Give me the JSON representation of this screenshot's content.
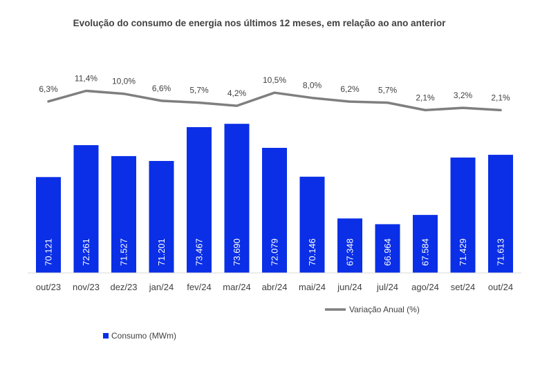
{
  "chart_data": {
    "type": "bar",
    "title": "Evolução do consumo de energia nos últimos 12 meses, em relação ao ano anterior",
    "categories": [
      "out/23",
      "nov/23",
      "dez/23",
      "jan/24",
      "fev/24",
      "mar/24",
      "abr/24",
      "mai/24",
      "jun/24",
      "jul/24",
      "ago/24",
      "set/24",
      "out/24"
    ],
    "series": [
      {
        "name": "Consumo (MWm)",
        "type": "bar",
        "color": "#0A2FE6",
        "values": [
          70121,
          72261,
          71527,
          71201,
          73467,
          73690,
          72079,
          70146,
          67348,
          66964,
          67584,
          71429,
          71613
        ],
        "labels": [
          "70.121",
          "72.261",
          "71.527",
          "71.201",
          "73.467",
          "73.690",
          "72.079",
          "70.146",
          "67.348",
          "66.964",
          "67.584",
          "71.429",
          "71.613"
        ]
      },
      {
        "name": "Variação Anual (%)",
        "type": "line",
        "color": "#7F7F7F",
        "values": [
          6.3,
          11.4,
          10.0,
          6.6,
          5.7,
          4.2,
          10.5,
          8.0,
          6.2,
          5.7,
          2.1,
          3.2,
          2.1
        ],
        "labels": [
          "6,3%",
          "11,4%",
          "10,0%",
          "6,6%",
          "5,7%",
          "4,2%",
          "10,5%",
          "8,0%",
          "6,2%",
          "5,7%",
          "2,1%",
          "3,2%",
          "2,1%"
        ]
      }
    ],
    "legend_position": "bottom",
    "grid": false
  }
}
